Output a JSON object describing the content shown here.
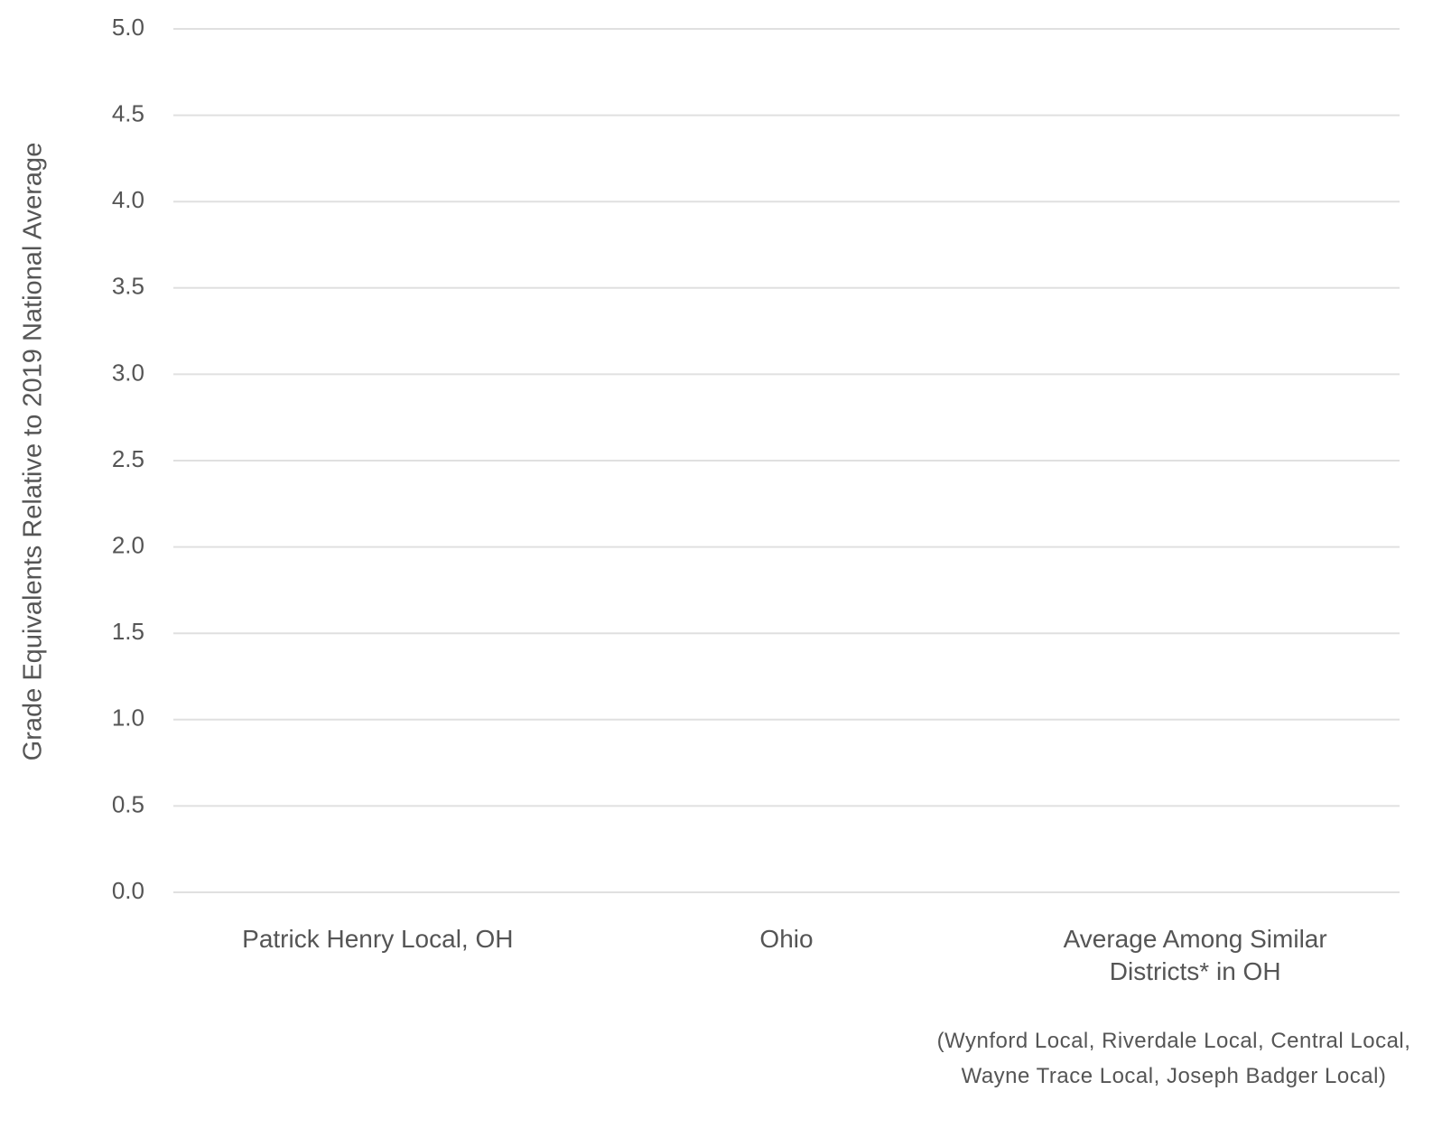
{
  "chart_data": {
    "type": "bar",
    "y_label": "Grade Equivalents Relative to 2019 National Average",
    "categories": [
      "Patrick Henry Local, OH",
      "Ohio",
      "Average Among Similar Districts* in OH"
    ],
    "note": "(Wynford Local, Riverdale Local, Central Local, Wayne Trace Local, Joseph Badger Local)",
    "ylim": [
      0,
      5
    ],
    "yticks": [
      {
        "value": 0,
        "label": "0.0"
      },
      0.5,
      {
        "value": 1,
        "label": "1.0"
      },
      1.5,
      {
        "value": 2,
        "label": "2.0"
      },
      2.5,
      {
        "value": 3,
        "label": "3.0"
      },
      3.5,
      {
        "value": 4,
        "label": "4.0"
      },
      4.5,
      {
        "value": 5,
        "label": "5.0"
      }
    ],
    "grid": true
  }
}
